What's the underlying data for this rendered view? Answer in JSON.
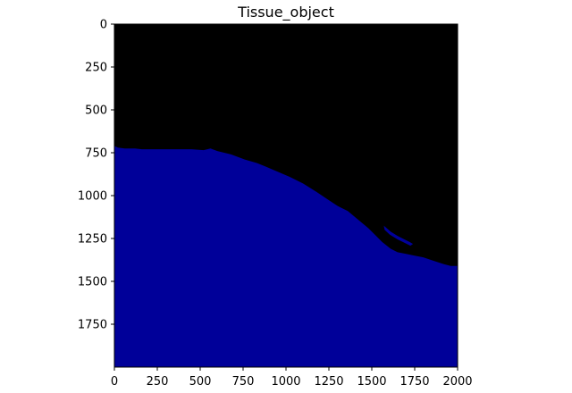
{
  "chart_data": {
    "type": "heatmap",
    "title": "Tissue_object",
    "xlabel": "",
    "ylabel": "",
    "image_width": 2000,
    "image_height": 2000,
    "xlim": [
      0,
      2000
    ],
    "ylim": [
      2000,
      0
    ],
    "y_axis_inverted": true,
    "grid": false,
    "xticks": [
      0,
      250,
      500,
      750,
      1000,
      1250,
      1500,
      1750,
      2000
    ],
    "yticks": [
      0,
      250,
      500,
      750,
      1000,
      1250,
      1500,
      1750
    ],
    "classes": [
      {
        "value": 0,
        "color": "#000000"
      },
      {
        "value": 1,
        "color": "#000099"
      }
    ],
    "tissue_boundary": [
      [
        0,
        710
      ],
      [
        20,
        720
      ],
      [
        60,
        725
      ],
      [
        120,
        725
      ],
      [
        160,
        730
      ],
      [
        220,
        730
      ],
      [
        330,
        730
      ],
      [
        450,
        730
      ],
      [
        520,
        735
      ],
      [
        560,
        725
      ],
      [
        600,
        740
      ],
      [
        680,
        760
      ],
      [
        760,
        790
      ],
      [
        830,
        810
      ],
      [
        880,
        830
      ],
      [
        950,
        860
      ],
      [
        1020,
        890
      ],
      [
        1100,
        930
      ],
      [
        1180,
        980
      ],
      [
        1240,
        1020
      ],
      [
        1300,
        1060
      ],
      [
        1360,
        1090
      ],
      [
        1420,
        1140
      ],
      [
        1480,
        1190
      ],
      [
        1520,
        1230
      ],
      [
        1560,
        1270
      ],
      [
        1610,
        1310
      ],
      [
        1650,
        1330
      ],
      [
        1700,
        1340
      ],
      [
        1750,
        1350
      ],
      [
        1800,
        1360
      ],
      [
        1860,
        1380
      ],
      [
        1920,
        1400
      ],
      [
        1960,
        1410
      ],
      [
        2000,
        1410
      ]
    ],
    "tissue_fragment": [
      [
        1570,
        1175
      ],
      [
        1610,
        1210
      ],
      [
        1650,
        1235
      ],
      [
        1690,
        1255
      ],
      [
        1720,
        1270
      ],
      [
        1740,
        1282
      ],
      [
        1725,
        1292
      ],
      [
        1690,
        1275
      ],
      [
        1650,
        1255
      ],
      [
        1605,
        1228
      ],
      [
        1575,
        1200
      ]
    ]
  }
}
